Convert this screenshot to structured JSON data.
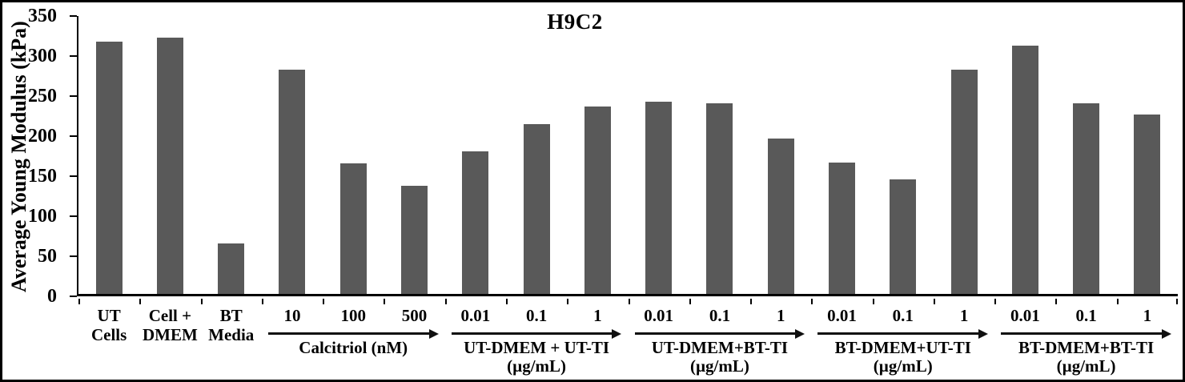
{
  "chart_data": {
    "type": "bar",
    "title": "H9C2",
    "ylabel": "Average Young Modulus (kPa)",
    "xlabel": "",
    "ylim": [
      0,
      350
    ],
    "yticks": [
      0,
      50,
      100,
      150,
      200,
      250,
      300,
      350
    ],
    "grid": false,
    "legend": false,
    "bar_color": "#595959",
    "axis_color": "#000000",
    "series": [
      {
        "label_lines": [
          "UT",
          "Cells"
        ],
        "value": 315
      },
      {
        "label_lines": [
          "Cell +",
          "DMEM"
        ],
        "value": 320
      },
      {
        "label_lines": [
          "BT",
          "Media"
        ],
        "value": 63
      },
      {
        "label_lines": [
          "10"
        ],
        "value": 280
      },
      {
        "label_lines": [
          "100"
        ],
        "value": 163
      },
      {
        "label_lines": [
          "500"
        ],
        "value": 135
      },
      {
        "label_lines": [
          "0.01"
        ],
        "value": 178
      },
      {
        "label_lines": [
          "0.1"
        ],
        "value": 212
      },
      {
        "label_lines": [
          "1"
        ],
        "value": 234
      },
      {
        "label_lines": [
          "0.01"
        ],
        "value": 240
      },
      {
        "label_lines": [
          "0.1"
        ],
        "value": 238
      },
      {
        "label_lines": [
          "1"
        ],
        "value": 194
      },
      {
        "label_lines": [
          "0.01"
        ],
        "value": 164
      },
      {
        "label_lines": [
          "0.1"
        ],
        "value": 143
      },
      {
        "label_lines": [
          "1"
        ],
        "value": 280
      },
      {
        "label_lines": [
          "0.01"
        ],
        "value": 310
      },
      {
        "label_lines": [
          "0.1"
        ],
        "value": 238
      },
      {
        "label_lines": [
          "1"
        ],
        "value": 224
      }
    ],
    "group_annotations": [
      {
        "start": 3,
        "end": 5,
        "name_lines": [
          "Calcitriol (nM)"
        ]
      },
      {
        "start": 6,
        "end": 8,
        "name_lines": [
          "UT-DMEM + UT-TI",
          "(µg/mL)"
        ]
      },
      {
        "start": 9,
        "end": 11,
        "name_lines": [
          "UT-DMEM+BT-TI",
          "(µg/mL)"
        ]
      },
      {
        "start": 12,
        "end": 14,
        "name_lines": [
          "BT-DMEM+UT-TI",
          "(µg/mL)"
        ]
      },
      {
        "start": 15,
        "end": 17,
        "name_lines": [
          "BT-DMEM+BT-TI",
          "(µg/mL)"
        ]
      }
    ]
  }
}
